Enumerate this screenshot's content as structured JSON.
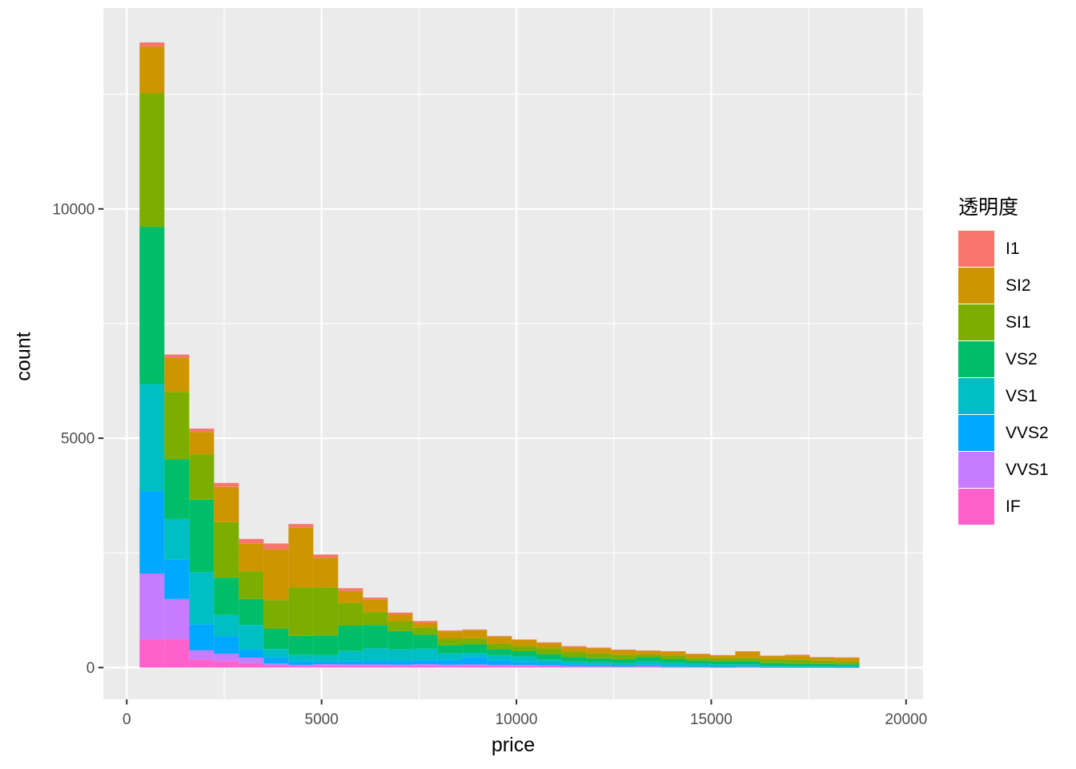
{
  "figure": {
    "background": "#FFFFFF",
    "panel_background": "#EBEBEB",
    "grid_color": "#FFFFFF",
    "tick_label_color": "#4D4D4D",
    "tick_mark_color": "#333333",
    "axis_title_color": "#000000"
  },
  "axes": {
    "x": {
      "title": "price",
      "ticks": [
        0,
        5000,
        10000,
        15000,
        20000
      ],
      "tick_labels": [
        "0",
        "5000",
        "10000",
        "15000",
        "20000"
      ],
      "minor_ticks": [
        2500,
        7500,
        12500,
        17500
      ],
      "range": [
        -596,
        20430
      ]
    },
    "y": {
      "title": "count",
      "ticks": [
        0,
        5000,
        10000
      ],
      "tick_labels": [
        "0",
        "5000",
        "10000"
      ],
      "minor_ticks": [
        2500,
        7500,
        12500
      ],
      "range": [
        -692,
        14380
      ]
    }
  },
  "legend": {
    "title": "透明度",
    "items": [
      {
        "label": "I1",
        "color": "#F8766D"
      },
      {
        "label": "SI2",
        "color": "#CD9600"
      },
      {
        "label": "SI1",
        "color": "#7CAE00"
      },
      {
        "label": "VS2",
        "color": "#00BE67"
      },
      {
        "label": "VS1",
        "color": "#00BFC4"
      },
      {
        "label": "VVS2",
        "color": "#00A9FF"
      },
      {
        "label": "VVS1",
        "color": "#C77CFF"
      },
      {
        "label": "IF",
        "color": "#FF61CC"
      }
    ]
  },
  "chart_data": {
    "type": "bar",
    "subtype": "stacked-histogram",
    "title": "",
    "xlabel": "price",
    "ylabel": "count",
    "xlim": [
      -596,
      20430
    ],
    "ylim": [
      -692,
      14380
    ],
    "grid": true,
    "legend_position": "right",
    "bin_width": 637,
    "bin_edges": [
      329,
      966,
      1603,
      2240,
      2877,
      3514,
      4151,
      4788,
      5425,
      6062,
      6699,
      7336,
      7973,
      8610,
      9247,
      9884,
      10521,
      11158,
      11795,
      12432,
      13069,
      13706,
      14343,
      14980,
      15617,
      16254,
      16891,
      17528,
      18165,
      18802
    ],
    "stack_order_bottom_to_top": [
      "IF",
      "VVS1",
      "VVS2",
      "VS1",
      "VS2",
      "SI1",
      "SI2",
      "I1"
    ],
    "series": [
      {
        "name": "IF",
        "color": "#FF61CC",
        "values": [
          610,
          620,
          175,
          140,
          100,
          40,
          25,
          35,
          35,
          35,
          30,
          35,
          30,
          35,
          30,
          28,
          28,
          17,
          17,
          12,
          17,
          6,
          6,
          3,
          6,
          3,
          3,
          3,
          2
        ]
      },
      {
        "name": "VVS1",
        "color": "#C77CFF",
        "values": [
          1440,
          875,
          200,
          160,
          115,
          50,
          35,
          40,
          35,
          35,
          35,
          40,
          35,
          35,
          30,
          28,
          17,
          17,
          12,
          12,
          17,
          6,
          6,
          3,
          6,
          3,
          0,
          0,
          2
        ]
      },
      {
        "name": "VVS2",
        "color": "#00A9FF",
        "values": [
          1790,
          855,
          570,
          380,
          175,
          140,
          75,
          60,
          70,
          75,
          80,
          85,
          105,
          160,
          100,
          70,
          58,
          40,
          35,
          29,
          29,
          17,
          12,
          12,
          12,
          6,
          6,
          6,
          5
        ]
      },
      {
        "name": "VS1",
        "color": "#00BFC4",
        "values": [
          2340,
          890,
          1135,
          465,
          540,
          175,
          145,
          135,
          220,
          275,
          250,
          250,
          140,
          90,
          115,
          115,
          75,
          58,
          52,
          47,
          70,
          76,
          58,
          52,
          47,
          29,
          23,
          23,
          25
        ]
      },
      {
        "name": "VS2",
        "color": "#00BE67",
        "values": [
          3430,
          1300,
          1580,
          815,
          565,
          440,
          410,
          430,
          555,
          510,
          400,
          305,
          180,
          185,
          130,
          115,
          115,
          100,
          87,
          80,
          93,
          76,
          70,
          70,
          70,
          58,
          58,
          47,
          38
        ]
      },
      {
        "name": "SI1",
        "color": "#7CAE00",
        "values": [
          2910,
          1470,
          990,
          1210,
          600,
          625,
          1055,
          1050,
          495,
          280,
          215,
          160,
          145,
          135,
          120,
          115,
          130,
          115,
          105,
          100,
          52,
          70,
          58,
          58,
          70,
          81,
          87,
          70,
          55
        ]
      },
      {
        "name": "SI2",
        "color": "#CD9600",
        "values": [
          1020,
          745,
          485,
          770,
          605,
          1105,
          1315,
          645,
          260,
          270,
          150,
          100,
          155,
          175,
          150,
          130,
          115,
          100,
          110,
          100,
          87,
          99,
          87,
          70,
          140,
          76,
          87,
          76,
          90
        ]
      },
      {
        "name": "I1",
        "color": "#F8766D",
        "values": [
          90,
          70,
          75,
          85,
          105,
          130,
          70,
          70,
          60,
          45,
          40,
          40,
          20,
          15,
          15,
          12,
          12,
          22,
          17,
          12,
          6,
          6,
          3,
          3,
          3,
          3,
          17,
          3,
          3
        ]
      }
    ]
  }
}
